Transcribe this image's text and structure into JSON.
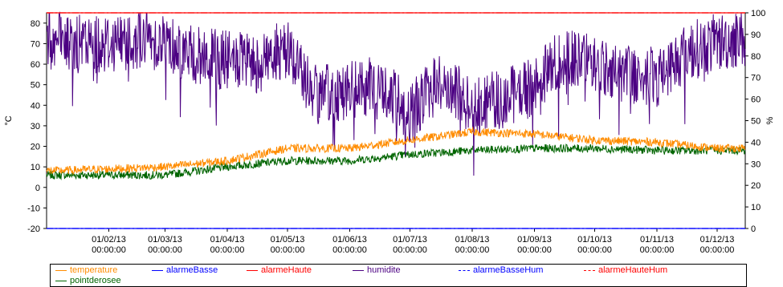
{
  "chart_data": {
    "type": "line",
    "title": "",
    "xlabel": "",
    "ylabel_left": "°C",
    "ylabel_right": "%",
    "ylim_left": [
      -20,
      85
    ],
    "ylim_right": [
      0,
      100
    ],
    "yticks_left": [
      "80",
      "70",
      "60",
      "50",
      "40",
      "30",
      "20",
      "10",
      "0",
      "-10",
      "-20"
    ],
    "yticks_right": [
      "100",
      "90",
      "80",
      "70",
      "60",
      "50",
      "40",
      "30",
      "20",
      "10",
      "0"
    ],
    "x_range": [
      "2013-01-01",
      "2013-12-15"
    ],
    "xticks": [
      {
        "date": "01/02/13",
        "time": "00:00:00"
      },
      {
        "date": "01/03/13",
        "time": "00:00:00"
      },
      {
        "date": "01/04/13",
        "time": "00:00:00"
      },
      {
        "date": "01/05/13",
        "time": "00:00:00"
      },
      {
        "date": "01/06/13",
        "time": "00:00:00"
      },
      {
        "date": "01/07/13",
        "time": "00:00:00"
      },
      {
        "date": "01/08/13",
        "time": "00:00:00"
      },
      {
        "date": "01/09/13",
        "time": "00:00:00"
      },
      {
        "date": "01/10/13",
        "time": "00:00:00"
      },
      {
        "date": "01/11/13",
        "time": "00:00:00"
      },
      {
        "date": "01/12/13",
        "time": "00:00:00"
      }
    ],
    "legend_placement": "bottom",
    "grid": false,
    "series": [
      {
        "name": "temperature",
        "color": "#ff8c00",
        "axis": "left",
        "style": "solid",
        "x": [
          "2013-01-01",
          "2013-02-01",
          "2013-03-01",
          "2013-04-01",
          "2013-05-01",
          "2013-06-01",
          "2013-07-01",
          "2013-08-01",
          "2013-09-01",
          "2013-10-01",
          "2013-11-01",
          "2013-12-01",
          "2013-12-15"
        ],
        "values": [
          8,
          9,
          10,
          13,
          19,
          19,
          23,
          27,
          26,
          23,
          22,
          19,
          19
        ]
      },
      {
        "name": "alarmeBasse",
        "color": "#0000ff",
        "axis": "left",
        "style": "solid",
        "x": [
          "2013-01-01",
          "2013-12-15"
        ],
        "values": [
          -20,
          -20
        ]
      },
      {
        "name": "alarmeHaute",
        "color": "#ff0000",
        "axis": "left",
        "style": "solid",
        "x": [
          "2013-01-01",
          "2013-12-15"
        ],
        "values": [
          85,
          85
        ]
      },
      {
        "name": "humidite",
        "color": "#4b0082",
        "axis": "right",
        "style": "solid",
        "x": [
          "2013-01-01",
          "2013-01-15",
          "2013-02-01",
          "2013-02-15",
          "2013-03-01",
          "2013-03-15",
          "2013-04-01",
          "2013-04-15",
          "2013-05-01",
          "2013-05-15",
          "2013-06-01",
          "2013-06-15",
          "2013-07-01",
          "2013-07-15",
          "2013-08-01",
          "2013-08-15",
          "2013-09-01",
          "2013-09-15",
          "2013-10-01",
          "2013-10-15",
          "2013-11-01",
          "2013-11-15",
          "2013-12-01",
          "2013-12-15"
        ],
        "values": [
          88,
          85,
          86,
          88,
          87,
          80,
          78,
          76,
          84,
          62,
          64,
          66,
          54,
          68,
          58,
          60,
          66,
          80,
          76,
          72,
          70,
          82,
          86,
          89
        ]
      },
      {
        "name": "alarmeBasseHum",
        "color": "#0000ff",
        "axis": "right",
        "style": "dashdot",
        "x": [
          "2013-01-01",
          "2013-12-15"
        ],
        "values": [
          0,
          0
        ]
      },
      {
        "name": "alarmeHauteHum",
        "color": "#ff0000",
        "axis": "right",
        "style": "dashdot",
        "x": [
          "2013-01-01",
          "2013-12-15"
        ],
        "values": [
          100,
          100
        ]
      },
      {
        "name": "pointderosee",
        "color": "#006400",
        "axis": "left",
        "style": "solid",
        "x": [
          "2013-01-01",
          "2013-02-01",
          "2013-03-01",
          "2013-04-01",
          "2013-05-01",
          "2013-06-01",
          "2013-07-01",
          "2013-08-01",
          "2013-09-01",
          "2013-10-01",
          "2013-11-01",
          "2013-12-01",
          "2013-12-15"
        ],
        "values": [
          6,
          6,
          6,
          10,
          13,
          13,
          16,
          18,
          19,
          19,
          18,
          18,
          18
        ]
      }
    ]
  }
}
